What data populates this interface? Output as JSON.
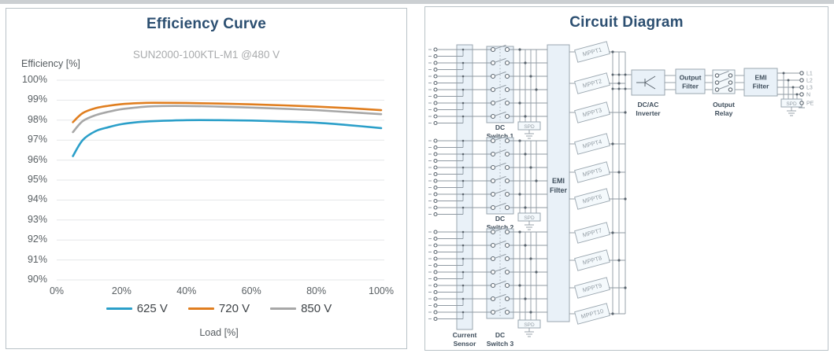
{
  "page": {
    "top_strip_color": "#cbcfd2"
  },
  "chart_data": {
    "type": "line",
    "title": "Efficiency Curve",
    "subtitle": "SUN2000-100KTL-M1 @480 V",
    "xlabel": "Load [%]",
    "ylabel": "Efficiency [%]",
    "xlim": [
      0,
      100
    ],
    "ylim": [
      90,
      100
    ],
    "grid": true,
    "legend_position": "bottom",
    "x_tick_values": [
      0,
      20,
      40,
      60,
      80,
      100
    ],
    "x_tick_labels": [
      "0%",
      "20%",
      "40%",
      "60%",
      "80%",
      "100%"
    ],
    "y_tick_values": [
      100,
      99,
      98,
      97,
      96,
      95,
      94,
      93,
      92,
      91,
      90
    ],
    "y_tick_labels": [
      "100%",
      "99%",
      "98%",
      "97%",
      "96%",
      "95%",
      "94%",
      "93%",
      "92%",
      "91%",
      "90%"
    ],
    "x": [
      5,
      8,
      12,
      16,
      20,
      25,
      30,
      40,
      50,
      60,
      70,
      80,
      90,
      100
    ],
    "series": [
      {
        "name": "625 V",
        "color": "#2b9fc9",
        "values": [
          96.2,
          97.0,
          97.45,
          97.65,
          97.8,
          97.9,
          97.95,
          98.0,
          98.0,
          97.98,
          97.93,
          97.87,
          97.75,
          97.6
        ]
      },
      {
        "name": "720 V",
        "color": "#e07e1f",
        "values": [
          97.9,
          98.35,
          98.6,
          98.72,
          98.8,
          98.85,
          98.87,
          98.86,
          98.83,
          98.79,
          98.74,
          98.68,
          98.6,
          98.5
        ]
      },
      {
        "name": "850 V",
        "color": "#a7a7a7",
        "values": [
          97.4,
          97.95,
          98.25,
          98.42,
          98.55,
          98.64,
          98.7,
          98.71,
          98.68,
          98.63,
          98.57,
          98.5,
          98.4,
          98.3
        ]
      }
    ]
  },
  "circuit": {
    "title": "Circuit Diagram",
    "labels": {
      "current_sensor": [
        "Current",
        "Sensor"
      ],
      "dc_switches": [
        [
          "DC",
          "Switch 1"
        ],
        [
          "DC",
          "Switch 2"
        ],
        [
          "DC",
          "Switch 3"
        ]
      ],
      "spd": "SPD",
      "emi_filter_dc": [
        "EMI",
        "Filter"
      ],
      "mppt": [
        "MPPT1",
        "MPPT2",
        "MPPT3",
        "MPPT4",
        "MPPT5",
        "MPPT6",
        "MPPT7",
        "MPPT8",
        "MPPT9",
        "MPPT10"
      ],
      "inverter": [
        "DC/AC",
        "Inverter"
      ],
      "output_filter": [
        "Output",
        "Filter"
      ],
      "output_relay": [
        "Output",
        "Relay"
      ],
      "emi_filter_ac": [
        "EMI",
        "Filter"
      ],
      "ac_terminals": [
        "L1",
        "L2",
        "L3",
        "N",
        "PE"
      ]
    }
  }
}
